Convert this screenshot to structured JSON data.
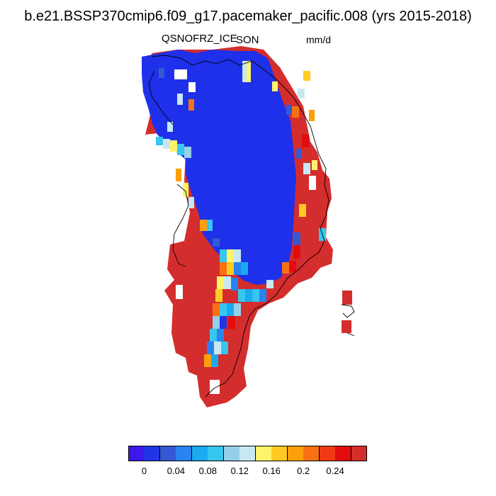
{
  "title": "b.e21.BSSP370cmip6.f09_g17.pacemaker_pacific.008 (yrs 2015-2018)",
  "variable": "QSNOFRZ_ICE",
  "season": "SON",
  "units": "mm/d",
  "colorbar": {
    "colors": [
      "#3d18e8",
      "#2134e6",
      "#3559d5",
      "#2a83ee",
      "#1aaaf0",
      "#36c6f0",
      "#95cfe8",
      "#c7e8f3",
      "#fff36b",
      "#ffcb23",
      "#fb9f0a",
      "#f77114",
      "#f03b14",
      "#e30c0c",
      "#d42d2d"
    ],
    "tick_labels": [
      "0",
      "0.04",
      "0.08",
      "0.12",
      "0.16",
      "0.2",
      "0.24"
    ]
  },
  "map": {
    "region": "Greenland",
    "dominant_colors": {
      "interior": "#1f30ea",
      "margin": "#d42d2d",
      "coastline": "#000000"
    }
  }
}
